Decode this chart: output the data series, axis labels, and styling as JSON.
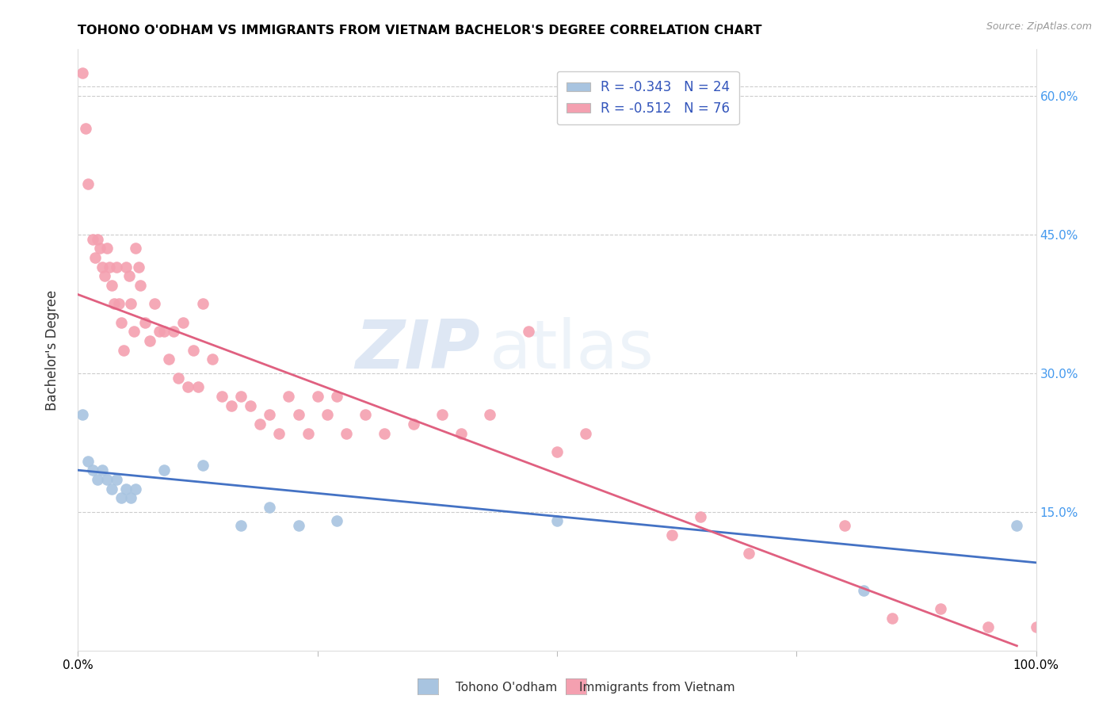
{
  "title": "TOHONO O'ODHAM VS IMMIGRANTS FROM VIETNAM BACHELOR'S DEGREE CORRELATION CHART",
  "source": "Source: ZipAtlas.com",
  "ylabel": "Bachelor's Degree",
  "xlim": [
    0,
    1.0
  ],
  "ylim": [
    0,
    0.65
  ],
  "color_blue": "#a8c4e0",
  "color_pink": "#f4a0b0",
  "line_color_blue": "#4472c4",
  "line_color_pink": "#e06080",
  "watermark_zip": "ZIP",
  "watermark_atlas": "atlas",
  "blue_x": [
    0.005,
    0.01,
    0.015,
    0.02,
    0.025,
    0.03,
    0.035,
    0.04,
    0.045,
    0.05,
    0.055,
    0.06,
    0.09,
    0.13,
    0.17,
    0.2,
    0.23,
    0.27,
    0.5,
    0.82,
    0.98
  ],
  "blue_y": [
    0.255,
    0.205,
    0.195,
    0.185,
    0.195,
    0.185,
    0.175,
    0.185,
    0.165,
    0.175,
    0.165,
    0.175,
    0.195,
    0.2,
    0.135,
    0.155,
    0.135,
    0.14,
    0.14,
    0.065,
    0.135
  ],
  "pink_x": [
    0.005,
    0.008,
    0.01,
    0.015,
    0.018,
    0.02,
    0.023,
    0.025,
    0.028,
    0.03,
    0.033,
    0.035,
    0.038,
    0.04,
    0.043,
    0.045,
    0.048,
    0.05,
    0.053,
    0.055,
    0.058,
    0.06,
    0.063,
    0.065,
    0.07,
    0.075,
    0.08,
    0.085,
    0.09,
    0.095,
    0.1,
    0.105,
    0.11,
    0.115,
    0.12,
    0.125,
    0.13,
    0.14,
    0.15,
    0.16,
    0.17,
    0.18,
    0.19,
    0.2,
    0.21,
    0.22,
    0.23,
    0.24,
    0.25,
    0.26,
    0.27,
    0.28,
    0.3,
    0.32,
    0.35,
    0.38,
    0.4,
    0.43,
    0.47,
    0.5,
    0.53,
    0.62,
    0.65,
    0.7,
    0.8,
    0.85,
    0.9,
    0.95,
    1.0
  ],
  "pink_y": [
    0.625,
    0.565,
    0.505,
    0.445,
    0.425,
    0.445,
    0.435,
    0.415,
    0.405,
    0.435,
    0.415,
    0.395,
    0.375,
    0.415,
    0.375,
    0.355,
    0.325,
    0.415,
    0.405,
    0.375,
    0.345,
    0.435,
    0.415,
    0.395,
    0.355,
    0.335,
    0.375,
    0.345,
    0.345,
    0.315,
    0.345,
    0.295,
    0.355,
    0.285,
    0.325,
    0.285,
    0.375,
    0.315,
    0.275,
    0.265,
    0.275,
    0.265,
    0.245,
    0.255,
    0.235,
    0.275,
    0.255,
    0.235,
    0.275,
    0.255,
    0.275,
    0.235,
    0.255,
    0.235,
    0.245,
    0.255,
    0.235,
    0.255,
    0.345,
    0.215,
    0.235,
    0.125,
    0.145,
    0.105,
    0.135,
    0.035,
    0.045,
    0.025,
    0.025
  ],
  "blue_trendline_x": [
    0.0,
    1.0
  ],
  "blue_trendline_y": [
    0.195,
    0.095
  ],
  "pink_trendline_x": [
    0.0,
    0.98
  ],
  "pink_trendline_y": [
    0.385,
    0.005
  ]
}
